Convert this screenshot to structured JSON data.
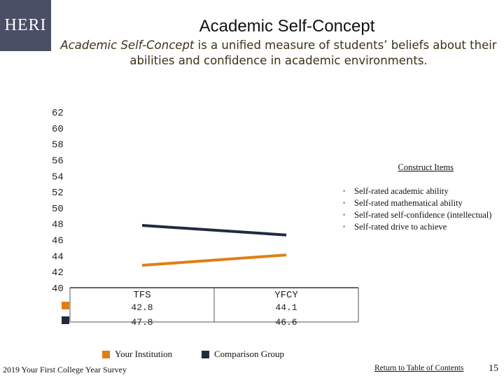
{
  "logo_text": "HERI",
  "header": {
    "title": "Academic Self-Concept",
    "subtitle_em": "Academic Self-Concept",
    "subtitle_rest": " is a unified measure of students’ beliefs about their abilities and confidence in academic environments."
  },
  "construct": {
    "title": "Construct Items",
    "items": [
      "Self-rated academic ability",
      "Self-rated mathematical ability",
      "Self-rated self-confidence (intellectual)",
      "Self-rated drive to achieve"
    ]
  },
  "chart_data": {
    "type": "line",
    "categories": [
      "TFS",
      "YFCY"
    ],
    "series": [
      {
        "name": "Your Institution",
        "values": [
          42.8,
          44.1
        ],
        "color": "#e07e14"
      },
      {
        "name": "Comparison Group",
        "values": [
          47.8,
          46.6
        ],
        "color": "#222a40"
      }
    ],
    "ylim": [
      40,
      62
    ],
    "yticks": [
      62,
      60,
      58,
      56,
      54,
      52,
      50,
      48,
      46,
      44,
      42,
      40
    ],
    "data_table": [
      [
        "42.8",
        "44.1"
      ],
      [
        "47.8",
        "46.6"
      ]
    ],
    "legend_position": "bottom"
  },
  "footer": {
    "survey": "2019 Your First College Year Survey",
    "link": "Return to Table of Contents",
    "page": "15"
  }
}
